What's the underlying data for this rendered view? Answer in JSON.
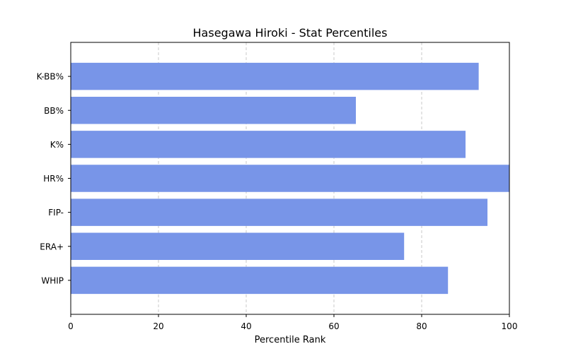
{
  "chart_data": {
    "type": "bar",
    "orientation": "horizontal",
    "title": "Hasegawa Hiroki - Stat Percentiles",
    "xlabel": "Percentile Rank",
    "ylabel": "",
    "categories": [
      "K-BB%",
      "BB%",
      "K%",
      "HR%",
      "FIP-",
      "ERA+",
      "WHIP"
    ],
    "values": [
      93,
      65,
      90,
      100,
      95,
      76,
      86
    ],
    "xlim": [
      0,
      100
    ],
    "xticks": [
      0,
      20,
      40,
      60,
      80,
      100
    ],
    "grid": "x-dashed",
    "bar_color": "#7895e8",
    "grid_color": "#c8c8c8"
  }
}
